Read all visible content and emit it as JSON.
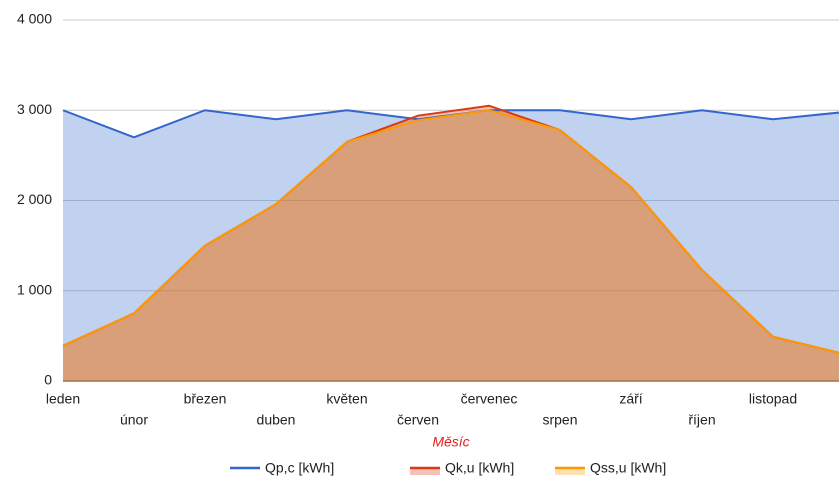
{
  "chart_data": {
    "type": "area",
    "categories": [
      "leden",
      "únor",
      "březen",
      "duben",
      "květen",
      "červen",
      "červenec",
      "srpen",
      "září",
      "říjen",
      "listopad",
      null
    ],
    "series": [
      {
        "name": "Qp,c [kWh]",
        "color": "#3366cc",
        "values": [
          3000,
          2700,
          3000,
          2900,
          3000,
          2900,
          3000,
          3000,
          2900,
          3000,
          2900,
          2980
        ]
      },
      {
        "name": "Qk,u [kWh]",
        "color": "#dc3912",
        "values": [
          390,
          750,
          1500,
          1960,
          2650,
          2940,
          3050,
          2780,
          2150,
          1230,
          490,
          300
        ]
      },
      {
        "name": "Qss,u [kWh]",
        "color": "#ff9900",
        "values": [
          390,
          750,
          1500,
          1960,
          2650,
          2890,
          3000,
          2780,
          2150,
          1230,
          490,
          300
        ]
      }
    ],
    "x_label": "Měsíc",
    "ylim": [
      0,
      4000
    ],
    "yticks": [
      0,
      {
        "value": 1000,
        "label": "1 000"
      },
      {
        "value": 2000,
        "label": "2 000"
      },
      {
        "value": 3000,
        "label": "3 000"
      },
      {
        "value": 4000,
        "label": "4 000"
      }
    ],
    "grid": true,
    "legend": "bottom"
  }
}
